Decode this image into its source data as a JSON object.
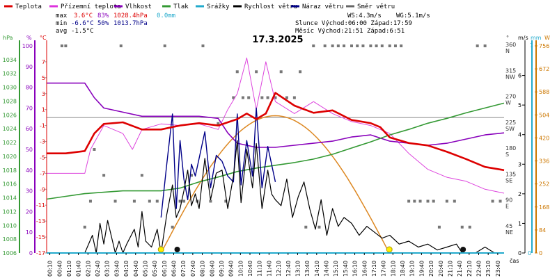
{
  "chart_data": {
    "type": "line",
    "title": "17.3.2025",
    "legend": [
      {
        "label": "Teplota",
        "color": "#dd0000"
      },
      {
        "label": "Přízemní teplota",
        "color": "#dd33dd"
      },
      {
        "label": "Vlhkost",
        "color": "#8800bb"
      },
      {
        "label": "Tlak",
        "color": "#339933"
      },
      {
        "label": "Srážky",
        "color": "#22aacc"
      },
      {
        "label": "Rychlost větru",
        "color": "#000000"
      },
      {
        "label": "Náraz větru",
        "color": "#000088"
      },
      {
        "label": "Směr větru",
        "color": "#666666"
      }
    ],
    "stats": {
      "max": {
        "label": "max",
        "temp": "3.6°C",
        "hum": "83%",
        "press": "1028.4hPa",
        "rain": "0.0mm"
      },
      "min": {
        "label": "min",
        "temp": "-6.6°C",
        "hum": "50%",
        "press": "1013.7hPa"
      },
      "avg": {
        "label": "avg",
        "temp": "-1.5°C"
      },
      "ws": "WS:4.3m/s",
      "wg": "WG:5.1m/s",
      "sun": "Slunce Východ:06:00  Západ:17:59",
      "moon": "Měsíc  Východ:21:51  Západ:6:51"
    },
    "axis_units": {
      "press": "hPa",
      "hum": "%",
      "temp": "°C",
      "deg": "°",
      "wind": "m/s",
      "rain": "mm",
      "solar": "W"
    },
    "xlabel": "čas",
    "x_ticks": [
      "00:10",
      "00:40",
      "01:10",
      "01:40",
      "02:10",
      "02:40",
      "03:10",
      "03:40",
      "04:10",
      "04:40",
      "05:10",
      "05:40",
      "06:10",
      "06:40",
      "07:10",
      "07:40",
      "08:10",
      "08:40",
      "09:10",
      "09:40",
      "10:10",
      "10:40",
      "11:10",
      "11:40",
      "12:10",
      "12:40",
      "13:10",
      "13:40",
      "14:10",
      "14:40",
      "15:10",
      "15:40",
      "16:10",
      "16:40",
      "17:10",
      "17:40",
      "18:10",
      "18:40",
      "19:10",
      "19:40",
      "20:10",
      "20:40",
      "21:10",
      "21:40",
      "22:10",
      "22:40",
      "23:10",
      "23:40"
    ],
    "pressure_ticks": [
      "1034",
      "1032",
      "1030",
      "1028",
      "1026",
      "1024",
      "1022",
      "1020",
      "1018",
      "1016",
      "1014",
      "1012",
      "1010",
      "1008",
      "1006"
    ],
    "humidity_ticks": [
      "100",
      "90",
      "80",
      "70",
      "60",
      "50",
      "40",
      "30",
      "20",
      "10",
      "0"
    ],
    "temp_ticks": [
      "7",
      "5",
      "3",
      "1",
      "-1",
      "-3",
      "-5",
      "-7",
      "-9",
      "-11",
      "-13",
      "-15",
      "-17"
    ],
    "direction_ticks": [
      {
        "deg": "360",
        "dir": "N"
      },
      {
        "deg": "315",
        "dir": "NW"
      },
      {
        "deg": "270",
        "dir": "W"
      },
      {
        "deg": "225",
        "dir": "SW"
      },
      {
        "deg": "180",
        "dir": "S"
      },
      {
        "deg": "135",
        "dir": "SE"
      },
      {
        "deg": "90",
        "dir": "E"
      },
      {
        "deg": "45",
        "dir": "NE"
      }
    ],
    "wind_ticks": [
      "6",
      "5",
      "4",
      "3",
      "2",
      "1",
      "0"
    ],
    "solar_ticks": [
      "756",
      "672",
      "588",
      "504",
      "420",
      "336",
      "252",
      "168",
      "84",
      "0"
    ],
    "ranges": {
      "temp": [
        -17,
        9
      ],
      "humidity": [
        0,
        100
      ],
      "pressure": [
        1006,
        1036
      ],
      "wind": [
        0,
        7
      ],
      "solar": [
        0,
        756
      ],
      "direction": [
        0,
        360
      ]
    },
    "series": {
      "temperature": {
        "t": [
          0,
          1,
          2,
          2.5,
          3,
          4,
          5,
          6,
          7,
          8,
          9,
          10,
          10.5,
          11,
          11.5,
          12,
          13,
          14,
          15,
          16,
          17,
          17.5,
          18,
          19,
          20,
          21,
          22,
          23,
          24
        ],
        "v": [
          -4.5,
          -4.5,
          -4.2,
          -2,
          -0.8,
          -0.6,
          -1.5,
          -1.5,
          -1,
          -0.7,
          -1,
          -0.2,
          0.5,
          -0.2,
          0.5,
          3.1,
          1.5,
          0.6,
          0.9,
          -0.3,
          -0.7,
          -1.2,
          -2.5,
          -3.2,
          -3.5,
          -4.3,
          -5.2,
          -6.2,
          -6.6
        ]
      },
      "ground_temperature": {
        "t": [
          0,
          1,
          2,
          2.3,
          3,
          4,
          4.5,
          5,
          6,
          7,
          8,
          9,
          9.5,
          10,
          10.5,
          11,
          11.5,
          12,
          13,
          14,
          15,
          16,
          17,
          18,
          19,
          20,
          21,
          22,
          23,
          24
        ],
        "v": [
          -7,
          -7,
          -7,
          -4,
          -1,
          -2,
          -4,
          -1.5,
          -0.8,
          -1,
          -0.8,
          -1.5,
          1,
          3,
          7.5,
          1,
          7,
          2,
          0.5,
          2,
          0.5,
          -0.5,
          -1,
          -2,
          -4.5,
          -6.5,
          -7.5,
          -8,
          -9,
          -9.5
        ]
      },
      "humidity": {
        "t": [
          0,
          2,
          2.5,
          3,
          4,
          5,
          6,
          7,
          8,
          9,
          9.5,
          10,
          11,
          12,
          13,
          14,
          15,
          16,
          17,
          18,
          19,
          20,
          21,
          22,
          23,
          24
        ],
        "v": [
          82,
          82,
          75,
          70,
          68,
          66,
          66,
          66,
          66,
          65,
          58,
          53,
          51,
          51,
          52,
          53,
          54,
          56,
          57,
          54,
          53,
          52,
          53,
          55,
          57,
          58
        ]
      },
      "pressure": {
        "t": [
          0,
          1,
          2,
          3,
          4,
          5,
          6,
          7,
          8,
          9,
          10,
          11,
          12,
          13,
          14,
          15,
          16,
          17,
          18,
          19,
          20,
          21,
          22,
          23,
          24
        ],
        "v": [
          1013.8,
          1014.2,
          1014.6,
          1014.8,
          1015,
          1015,
          1015,
          1015.4,
          1016.3,
          1017,
          1017.8,
          1018.3,
          1018.7,
          1019.1,
          1019.6,
          1020.3,
          1021.2,
          1022.1,
          1023.1,
          1023.9,
          1024.8,
          1025.5,
          1026.3,
          1027,
          1027.7
        ]
      },
      "wind_speed": {
        "t": [
          0,
          2,
          2.4,
          2.6,
          2.8,
          3,
          3.2,
          3.6,
          3.8,
          4,
          4.2,
          4.6,
          4.8,
          5,
          5.2,
          5.5,
          5.8,
          6,
          6.3,
          6.6,
          6.8,
          7,
          7.2,
          7.4,
          7.6,
          7.8,
          8,
          8.3,
          8.6,
          8.9,
          9.2,
          9.5,
          9.8,
          10,
          10.2,
          10.5,
          10.8,
          11,
          11.3,
          11.6,
          11.8,
          12,
          12.3,
          12.6,
          12.9,
          13.2,
          13.5,
          13.8,
          14.1,
          14.4,
          14.7,
          15,
          15.3,
          15.6,
          16,
          16.4,
          16.8,
          17.2,
          17.6,
          18,
          18.5,
          19,
          19.5,
          20,
          20.5,
          21,
          21.5,
          21.8,
          22.2,
          22.5,
          23,
          23.5,
          24
        ],
        "v": [
          0,
          0,
          0.6,
          0,
          1,
          0.3,
          1.1,
          0,
          0.4,
          0,
          0.3,
          0.8,
          0.2,
          1.4,
          0.4,
          0.2,
          0.8,
          0,
          1.3,
          2.3,
          1.2,
          1.5,
          2.1,
          2.8,
          1.6,
          2,
          1.5,
          3.2,
          1.8,
          2.7,
          2.8,
          1.5,
          2.6,
          3.8,
          1.7,
          3.5,
          2.2,
          3.7,
          1.5,
          2.8,
          2,
          1.8,
          1.6,
          2.5,
          1.2,
          1.9,
          2.4,
          1.5,
          0.8,
          1.8,
          0.6,
          1.5,
          0.9,
          1.2,
          1,
          0.6,
          0.9,
          0.7,
          0.5,
          0.6,
          0.3,
          0.4,
          0.2,
          0.3,
          0.1,
          0.2,
          0.3,
          0,
          0,
          0,
          0.2,
          0,
          0
        ]
      },
      "wind_gust": {
        "t": [
          6,
          6.3,
          6.6,
          6.8,
          7,
          7.2,
          7.4,
          7.6,
          7.8,
          8,
          8.3,
          8.6,
          8.9,
          9.2,
          9.5,
          9.8,
          10,
          10.2,
          10.5,
          10.8,
          11,
          11.3,
          11.6,
          12
        ],
        "v": [
          1.2,
          3,
          4.7,
          1.5,
          3.8,
          2.5,
          1.8,
          3,
          2.6,
          3.2,
          4.1,
          2.2,
          3.3,
          3.1,
          2.6,
          2.4,
          4.7,
          2.3,
          3.8,
          2.6,
          4.9,
          2.2,
          3.6,
          2.4
        ]
      },
      "solar": {
        "rise": 6.0,
        "set": 17.98,
        "peak_time": 12.0,
        "peak": 501
      },
      "wind_direction": {
        "t": [
          0.8,
          1.0,
          2.0,
          2.3,
          2.5,
          3.0,
          3.6,
          3.9,
          4.6,
          5.0,
          5.4,
          5.8,
          6.2,
          6.6,
          7.0,
          7.2,
          7.6,
          7.9,
          8.2,
          8.6,
          9.0,
          9.4,
          9.8,
          10.0,
          10.3,
          10.6,
          11.0,
          11.3,
          11.6,
          12.0,
          12.3,
          12.6,
          13.0,
          13.3,
          13.6,
          14.0,
          14.3,
          14.6,
          15.0,
          15.3,
          15.6,
          16.0,
          16.3,
          16.6,
          17.0,
          17.3,
          17.6,
          18.0,
          18.3,
          18.6,
          19.0,
          19.3,
          19.6,
          20.0,
          20.3,
          20.6,
          21.0,
          21.4,
          21.8,
          22.2,
          22.6,
          23.0,
          23.4,
          23.8
        ],
        "v": [
          360,
          360,
          45,
          90,
          180,
          135,
          90,
          360,
          90,
          135,
          90,
          90,
          360,
          45,
          90,
          90,
          135,
          90,
          360,
          90,
          225,
          90,
          270,
          315,
          270,
          270,
          315,
          270,
          270,
          270,
          315,
          270,
          270,
          315,
          45,
          360,
          45,
          360,
          360,
          360,
          360,
          360,
          360,
          360,
          360,
          360,
          360,
          360,
          360,
          360,
          90,
          90,
          90,
          90,
          90,
          45,
          90,
          90,
          45,
          45,
          360,
          360,
          90,
          90
        ]
      }
    },
    "markers": {
      "sunrise": 6.0,
      "sunset": 17.98,
      "moonrise": 21.85,
      "moonset": 6.85
    }
  }
}
